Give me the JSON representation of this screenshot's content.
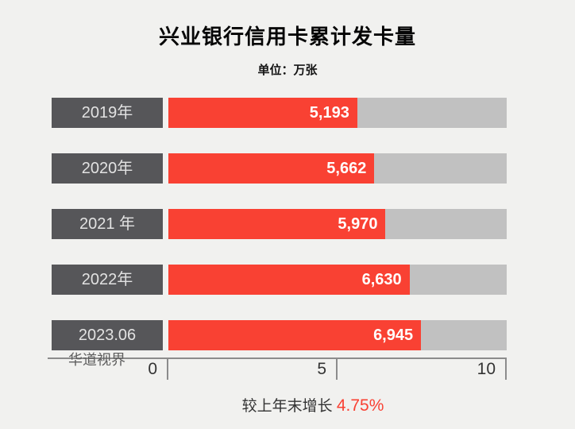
{
  "page": {
    "background": "#f1f1ef"
  },
  "chart_data": {
    "type": "bar",
    "orientation": "horizontal",
    "title": "兴业银行信用卡累计发卡量",
    "subtitle": "单位：万张",
    "categories": [
      "2019年",
      "2020年",
      "2021 年",
      "2022年",
      "2023.06"
    ],
    "values": [
      5193,
      5662,
      5970,
      6630,
      6945
    ],
    "value_labels": [
      "5,193",
      "5,662",
      "5,970",
      "6,630",
      "6,945"
    ],
    "xlim": [
      0,
      10000
    ],
    "x_ticks": [
      {
        "label": "0",
        "pos": 0
      },
      {
        "label": "5",
        "pos": 0.5
      },
      {
        "label": "10",
        "pos": 1
      }
    ],
    "grid": false,
    "legend": "none",
    "colors": {
      "bar": "#f94133",
      "track": "#c1c1c1",
      "category_box": "#565659",
      "category_text": "#e2e2e2",
      "value_text": "#ffffff",
      "axis": "#8c8c8c",
      "tick_text": "#333333"
    }
  },
  "watermark": "华道视界",
  "footer": {
    "label": "较上年末增长 ",
    "highlight": "4.75%",
    "highlight_color": "#f94133"
  }
}
